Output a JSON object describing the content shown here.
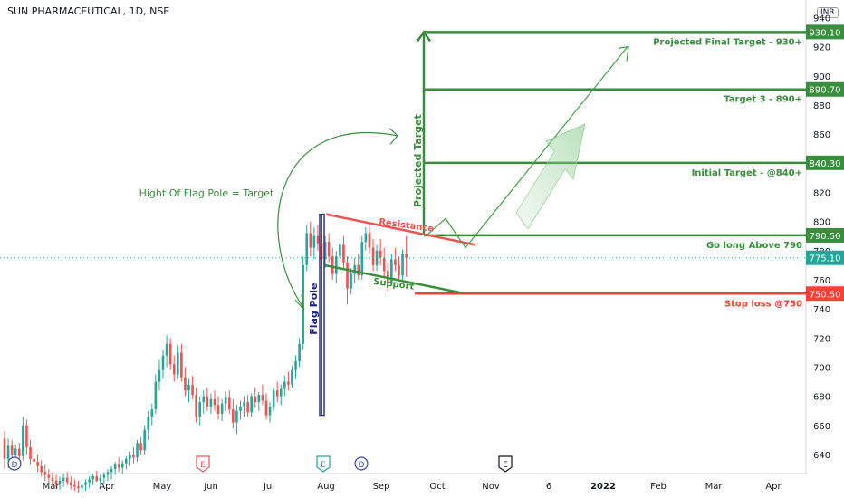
{
  "chart_data": {
    "type": "candlestick",
    "title": "SUN PHARMACEUTICAL, 1D, NSE",
    "currency": "INR",
    "y_axis": {
      "range": [
        630,
        955
      ],
      "ticks": [
        640,
        660,
        680,
        700,
        720,
        740,
        760,
        780,
        800,
        820,
        840,
        860,
        880,
        900,
        920,
        940
      ]
    },
    "x_axis": {
      "labels": [
        "Mar",
        "Apr",
        "May",
        "Jun",
        "Jul",
        "Aug",
        "Sep",
        "Oct",
        "Nov",
        "6",
        "2022",
        "Feb",
        "Mar",
        "Apr"
      ]
    },
    "last_price": 775.1,
    "price_levels": [
      {
        "value": 930.1,
        "label": "Projected Final Target - 930+",
        "color": "#388e3c"
      },
      {
        "value": 890.7,
        "label": "Target 3 - 890+",
        "color": "#388e3c"
      },
      {
        "value": 840.3,
        "label": "Initial Target - @840+",
        "color": "#388e3c"
      },
      {
        "value": 790.5,
        "label": "Go long Above 790",
        "color": "#388e3c"
      },
      {
        "value": 750.5,
        "label": "Stop loss @750",
        "color": "#f44336"
      }
    ],
    "last_price_label": "775.10",
    "annotations": {
      "flag_pole_text": "Hight Of Flag Pole = Target",
      "flag_pole_label": "Flag Pole",
      "projected_target_label": "Projected Target",
      "resistance_label": "Resistance",
      "support_label": "Support"
    },
    "event_markers": [
      "D",
      "E",
      "E",
      "D",
      "E"
    ],
    "candles": [
      {
        "o": 651,
        "h": 656,
        "l": 630,
        "c": 637
      },
      {
        "o": 637,
        "h": 651,
        "l": 631,
        "c": 646
      },
      {
        "o": 646,
        "h": 650,
        "l": 638,
        "c": 640
      },
      {
        "o": 640,
        "h": 647,
        "l": 636,
        "c": 644
      },
      {
        "o": 644,
        "h": 648,
        "l": 637,
        "c": 639
      },
      {
        "o": 639,
        "h": 666,
        "l": 636,
        "c": 660
      },
      {
        "o": 660,
        "h": 664,
        "l": 640,
        "c": 645
      },
      {
        "o": 645,
        "h": 650,
        "l": 633,
        "c": 637
      },
      {
        "o": 637,
        "h": 642,
        "l": 630,
        "c": 635
      },
      {
        "o": 635,
        "h": 640,
        "l": 628,
        "c": 632
      },
      {
        "o": 632,
        "h": 636,
        "l": 625,
        "c": 628
      },
      {
        "o": 628,
        "h": 633,
        "l": 622,
        "c": 626
      },
      {
        "o": 626,
        "h": 630,
        "l": 620,
        "c": 624
      },
      {
        "o": 624,
        "h": 628,
        "l": 619,
        "c": 622
      },
      {
        "o": 622,
        "h": 626,
        "l": 617,
        "c": 620
      },
      {
        "o": 620,
        "h": 625,
        "l": 616,
        "c": 622
      },
      {
        "o": 622,
        "h": 627,
        "l": 618,
        "c": 624
      },
      {
        "o": 624,
        "h": 628,
        "l": 619,
        "c": 621
      },
      {
        "o": 621,
        "h": 625,
        "l": 616,
        "c": 619
      },
      {
        "o": 619,
        "h": 623,
        "l": 615,
        "c": 618
      },
      {
        "o": 618,
        "h": 622,
        "l": 614,
        "c": 617
      },
      {
        "o": 617,
        "h": 621,
        "l": 613,
        "c": 619
      },
      {
        "o": 619,
        "h": 623,
        "l": 615,
        "c": 621
      },
      {
        "o": 621,
        "h": 625,
        "l": 617,
        "c": 623
      },
      {
        "o": 623,
        "h": 627,
        "l": 619,
        "c": 625
      },
      {
        "o": 625,
        "h": 629,
        "l": 621,
        "c": 622
      },
      {
        "o": 622,
        "h": 626,
        "l": 618,
        "c": 624
      },
      {
        "o": 624,
        "h": 628,
        "l": 620,
        "c": 626
      },
      {
        "o": 626,
        "h": 630,
        "l": 622,
        "c": 628
      },
      {
        "o": 628,
        "h": 632,
        "l": 623,
        "c": 630
      },
      {
        "o": 630,
        "h": 635,
        "l": 626,
        "c": 633
      },
      {
        "o": 633,
        "h": 638,
        "l": 628,
        "c": 631
      },
      {
        "o": 631,
        "h": 636,
        "l": 627,
        "c": 634
      },
      {
        "o": 634,
        "h": 639,
        "l": 630,
        "c": 637
      },
      {
        "o": 637,
        "h": 642,
        "l": 632,
        "c": 640
      },
      {
        "o": 640,
        "h": 645,
        "l": 634,
        "c": 638
      },
      {
        "o": 638,
        "h": 650,
        "l": 635,
        "c": 648
      },
      {
        "o": 648,
        "h": 652,
        "l": 640,
        "c": 643
      },
      {
        "o": 643,
        "h": 660,
        "l": 640,
        "c": 657
      },
      {
        "o": 657,
        "h": 670,
        "l": 650,
        "c": 666
      },
      {
        "o": 666,
        "h": 675,
        "l": 660,
        "c": 671
      },
      {
        "o": 671,
        "h": 695,
        "l": 668,
        "c": 690
      },
      {
        "o": 690,
        "h": 705,
        "l": 684,
        "c": 698
      },
      {
        "o": 698,
        "h": 712,
        "l": 692,
        "c": 708
      },
      {
        "o": 708,
        "h": 722,
        "l": 700,
        "c": 716
      },
      {
        "o": 716,
        "h": 720,
        "l": 698,
        "c": 702
      },
      {
        "o": 702,
        "h": 708,
        "l": 690,
        "c": 695
      },
      {
        "o": 695,
        "h": 715,
        "l": 692,
        "c": 710
      },
      {
        "o": 710,
        "h": 716,
        "l": 690,
        "c": 693
      },
      {
        "o": 693,
        "h": 700,
        "l": 680,
        "c": 684
      },
      {
        "o": 684,
        "h": 692,
        "l": 676,
        "c": 688
      },
      {
        "o": 688,
        "h": 694,
        "l": 678,
        "c": 681
      },
      {
        "o": 681,
        "h": 686,
        "l": 662,
        "c": 666
      },
      {
        "o": 666,
        "h": 680,
        "l": 660,
        "c": 676
      },
      {
        "o": 676,
        "h": 684,
        "l": 668,
        "c": 680
      },
      {
        "o": 680,
        "h": 686,
        "l": 670,
        "c": 673
      },
      {
        "o": 673,
        "h": 682,
        "l": 668,
        "c": 678
      },
      {
        "o": 678,
        "h": 684,
        "l": 670,
        "c": 674
      },
      {
        "o": 674,
        "h": 680,
        "l": 664,
        "c": 668
      },
      {
        "o": 668,
        "h": 678,
        "l": 663,
        "c": 675
      },
      {
        "o": 675,
        "h": 683,
        "l": 670,
        "c": 679
      },
      {
        "o": 679,
        "h": 684,
        "l": 668,
        "c": 671
      },
      {
        "o": 671,
        "h": 678,
        "l": 658,
        "c": 662
      },
      {
        "o": 662,
        "h": 674,
        "l": 654,
        "c": 670
      },
      {
        "o": 670,
        "h": 677,
        "l": 664,
        "c": 673
      },
      {
        "o": 673,
        "h": 680,
        "l": 666,
        "c": 676
      },
      {
        "o": 676,
        "h": 681,
        "l": 666,
        "c": 669
      },
      {
        "o": 669,
        "h": 682,
        "l": 666,
        "c": 680
      },
      {
        "o": 680,
        "h": 686,
        "l": 672,
        "c": 676
      },
      {
        "o": 676,
        "h": 683,
        "l": 670,
        "c": 681
      },
      {
        "o": 681,
        "h": 688,
        "l": 674,
        "c": 677
      },
      {
        "o": 677,
        "h": 682,
        "l": 664,
        "c": 667
      },
      {
        "o": 667,
        "h": 676,
        "l": 662,
        "c": 673
      },
      {
        "o": 673,
        "h": 686,
        "l": 670,
        "c": 684
      },
      {
        "o": 684,
        "h": 690,
        "l": 676,
        "c": 680
      },
      {
        "o": 680,
        "h": 688,
        "l": 674,
        "c": 685
      },
      {
        "o": 685,
        "h": 694,
        "l": 680,
        "c": 690
      },
      {
        "o": 690,
        "h": 697,
        "l": 684,
        "c": 688
      },
      {
        "o": 688,
        "h": 701,
        "l": 686,
        "c": 698
      },
      {
        "o": 698,
        "h": 708,
        "l": 692,
        "c": 704
      },
      {
        "o": 704,
        "h": 720,
        "l": 700,
        "c": 716
      },
      {
        "o": 716,
        "h": 776,
        "l": 712,
        "c": 770
      },
      {
        "o": 770,
        "h": 798,
        "l": 766,
        "c": 792
      },
      {
        "o": 792,
        "h": 800,
        "l": 776,
        "c": 782
      },
      {
        "o": 782,
        "h": 796,
        "l": 774,
        "c": 790
      },
      {
        "o": 790,
        "h": 798,
        "l": 780,
        "c": 785
      },
      {
        "o": 785,
        "h": 792,
        "l": 770,
        "c": 774
      },
      {
        "o": 774,
        "h": 790,
        "l": 768,
        "c": 786
      },
      {
        "o": 786,
        "h": 792,
        "l": 772,
        "c": 776
      },
      {
        "o": 776,
        "h": 782,
        "l": 760,
        "c": 764
      },
      {
        "o": 764,
        "h": 780,
        "l": 758,
        "c": 776
      },
      {
        "o": 776,
        "h": 788,
        "l": 770,
        "c": 784
      },
      {
        "o": 784,
        "h": 790,
        "l": 768,
        "c": 772
      },
      {
        "o": 772,
        "h": 776,
        "l": 743,
        "c": 754
      },
      {
        "o": 754,
        "h": 768,
        "l": 750,
        "c": 764
      },
      {
        "o": 764,
        "h": 775,
        "l": 758,
        "c": 770
      },
      {
        "o": 770,
        "h": 778,
        "l": 760,
        "c": 763
      },
      {
        "o": 763,
        "h": 790,
        "l": 760,
        "c": 786
      },
      {
        "o": 786,
        "h": 796,
        "l": 780,
        "c": 792
      },
      {
        "o": 792,
        "h": 797,
        "l": 778,
        "c": 782
      },
      {
        "o": 782,
        "h": 788,
        "l": 766,
        "c": 770
      },
      {
        "o": 770,
        "h": 784,
        "l": 766,
        "c": 780
      },
      {
        "o": 780,
        "h": 788,
        "l": 770,
        "c": 775
      },
      {
        "o": 775,
        "h": 782,
        "l": 762,
        "c": 766
      },
      {
        "o": 766,
        "h": 772,
        "l": 752,
        "c": 758
      },
      {
        "o": 758,
        "h": 778,
        "l": 756,
        "c": 774
      },
      {
        "o": 774,
        "h": 782,
        "l": 766,
        "c": 770
      },
      {
        "o": 770,
        "h": 776,
        "l": 759,
        "c": 763
      },
      {
        "o": 763,
        "h": 781,
        "l": 760,
        "c": 778
      },
      {
        "o": 778,
        "h": 790,
        "l": 762,
        "c": 775
      }
    ]
  }
}
